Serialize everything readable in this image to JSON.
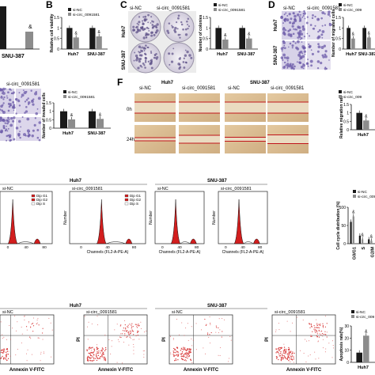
{
  "panel_letters": {
    "b": "B",
    "c": "C",
    "d": "D",
    "f": "F"
  },
  "legend": {
    "nc": "si-NC",
    "circ": "si-circ_0091581"
  },
  "legend_short": {
    "nc": "si-NC",
    "circ": "si-circ_009"
  },
  "cells": {
    "huh7": "Huh7",
    "snu387": "SNU-387"
  },
  "cropped": {
    "snu387_partial": "SNU-387",
    "circ_partial": "si-circ_0091581"
  },
  "axis": {
    "viability": "Relative cell viability",
    "colonies": "Number of colonies",
    "migrated": "Number of migrated cells",
    "invaded": "Number of invaded cells",
    "migration_rate": "Relative migration rate",
    "cell_cycle": "Cell cycle distribution (%)",
    "apoptosis": "Apoptosis rate(%)",
    "count": "Number",
    "channels": "Channels (FL2-A-PE-A)",
    "pi": "PI",
    "annexin": "Annexin V-FITC"
  },
  "time": {
    "t0": "0h",
    "t24": "24h"
  },
  "cycle_legend": {
    "g1": "Dip G1",
    "g2": "Dip G2",
    "s": "Dip S"
  },
  "cycle_phases": [
    "G0/G1",
    "S",
    "G2/M"
  ],
  "significance": "&",
  "colors": {
    "black": "#1a1a1a",
    "grey": "#8c8c8c",
    "peak": "#d21e1e",
    "dot": "#d83a3a",
    "wound": "#d8b98f",
    "wound_line": "#c0141a",
    "stain": "#6b5aa8",
    "stain_bg": "#d7d2e8"
  },
  "chart_data": [
    {
      "type": "bar",
      "panel": "B",
      "categories": [
        "Huh7",
        "SNU-387"
      ],
      "series": [
        {
          "name": "si-NC",
          "values": [
            1.0,
            1.0
          ]
        },
        {
          "name": "si-circ_0091581",
          "values": [
            0.55,
            0.6
          ]
        }
      ],
      "ylabel": "Relative cell viability",
      "ylim": [
        0,
        1.5
      ]
    },
    {
      "type": "bar",
      "panel": "C",
      "categories": [
        "Huh7",
        "SNU-387"
      ],
      "series": [
        {
          "name": "si-NC",
          "values": [
            1.0,
            1.0
          ]
        },
        {
          "name": "si-circ_0091581",
          "values": [
            0.45,
            0.5
          ]
        }
      ],
      "ylabel": "Number of colonies",
      "ylim": [
        0,
        1.5
      ]
    },
    {
      "type": "bar",
      "panel": "D",
      "categories": [
        "Huh7",
        "SNU-387"
      ],
      "series": [
        {
          "name": "si-NC",
          "values": [
            1.0,
            1.0
          ]
        },
        {
          "name": "si-circ_0091581",
          "values": [
            0.5,
            0.55
          ]
        }
      ],
      "ylabel": "Number of migrated cells",
      "ylim": [
        0,
        1.5
      ]
    },
    {
      "type": "bar",
      "panel": "E",
      "categories": [
        "Huh7",
        "SNU-387"
      ],
      "series": [
        {
          "name": "si-NC",
          "values": [
            1.0,
            1.0
          ]
        },
        {
          "name": "si-circ_0091581",
          "values": [
            0.52,
            0.55
          ]
        }
      ],
      "ylabel": "Number of invaded cells",
      "ylim": [
        0,
        1.5
      ]
    },
    {
      "type": "bar",
      "panel": "F",
      "categories": [
        "Huh7"
      ],
      "series": [
        {
          "name": "si-NC",
          "values": [
            1.0
          ]
        },
        {
          "name": "si-circ_0091581",
          "values": [
            0.55
          ]
        }
      ],
      "ylabel": "Relative migration rate",
      "ylim": [
        0,
        1.5
      ]
    },
    {
      "type": "bar",
      "panel": "G",
      "categories": [
        "G0/G1",
        "S",
        "G2/M"
      ],
      "series": [
        {
          "name": "si-NC",
          "values": [
            60,
            22,
            12
          ]
        },
        {
          "name": "si-circ_0091581",
          "values": [
            75,
            12,
            8
          ]
        }
      ],
      "ylabel": "Cell cycle distribution (%)",
      "ylim": [
        0,
        100
      ]
    },
    {
      "type": "bar",
      "panel": "H",
      "categories": [
        "Huh7"
      ],
      "series": [
        {
          "name": "si-NC",
          "values": [
            8
          ]
        },
        {
          "name": "si-circ_0091581",
          "values": [
            22
          ]
        }
      ],
      "ylabel": "Apoptosis rate(%)",
      "ylim": [
        0,
        30
      ]
    }
  ]
}
